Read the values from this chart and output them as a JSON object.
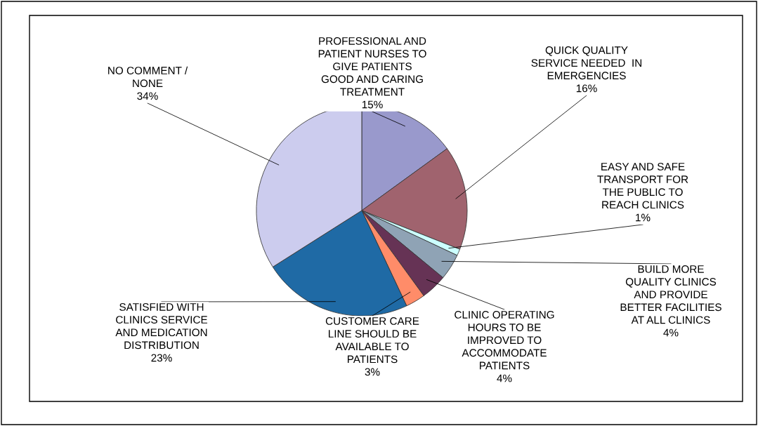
{
  "chart_data": {
    "type": "pie",
    "categories": [
      "PROFESSIONAL AND\nPATIENT NURSES TO\nGIVE PATIENTS\nGOOD AND CARING\nTREATMENT",
      "QUICK QUALITY\nSERVICE NEEDED  IN\nEMERGENCIES",
      "EASY AND SAFE\nTRANSPORT FOR\nTHE PUBLIC TO\nREACH CLINICS",
      "BUILD MORE\nQUALITY CLINICS\nAND PROVIDE\nBETTER FACILITIES\nAT ALL CLINICS",
      "CLINIC OPERATING\nHOURS TO BE\nIMPROVED TO\nACCOMMODATE\nPATIENTS",
      "CUSTOMER CARE\nLINE SHOULD BE\nAVAILABLE TO\nPATIENTS",
      "SATISFIED WITH\nCLINICS SERVICE\nAND MEDICATION\nDISTRIBUTION",
      "NO COMMENT /\nNONE"
    ],
    "values": [
      15,
      16,
      1,
      4,
      4,
      3,
      23,
      34
    ],
    "value_labels": [
      "15%",
      "16%",
      "1%",
      "4%",
      "4%",
      "3%",
      "23%",
      "34%"
    ],
    "colors": [
      "#9999cc",
      "#a0636e",
      "#ccffff",
      "#8fa3b5",
      "#663355",
      "#ff8c69",
      "#1f6aa5",
      "#ccccee"
    ],
    "legend": false
  }
}
